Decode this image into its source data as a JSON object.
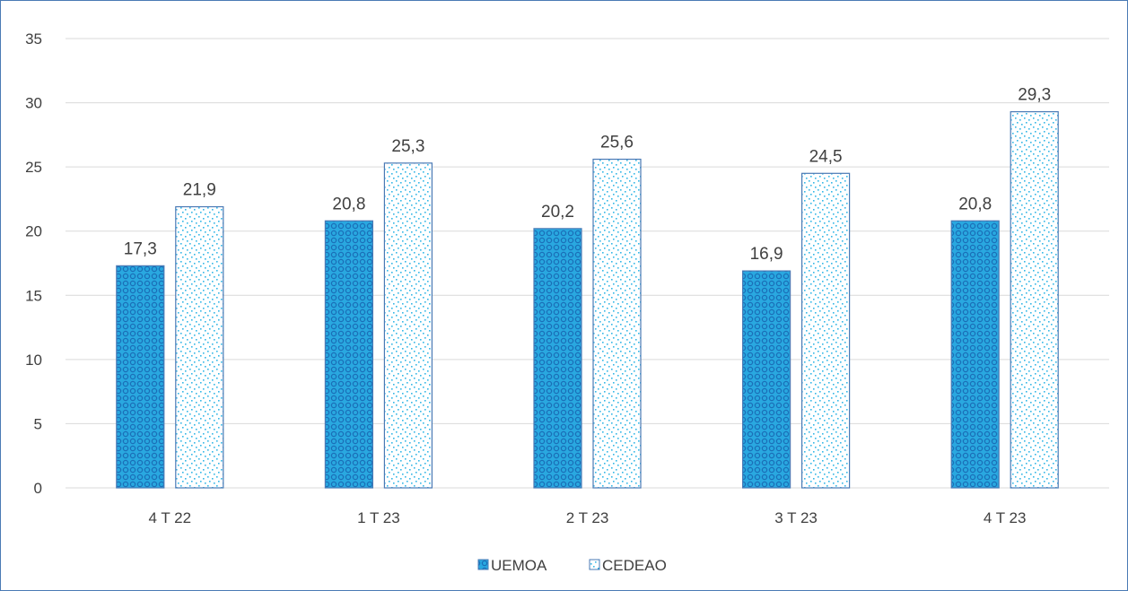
{
  "chart_data": {
    "type": "bar",
    "categories": [
      "4 T 22",
      "1 T 23",
      "2 T 23",
      "3 T 23",
      "4 T 23"
    ],
    "series": [
      {
        "name": "UEMOA",
        "values": [
          17.3,
          20.8,
          20.2,
          16.9,
          20.8
        ],
        "data_labels": [
          "17,3",
          "20,8",
          "20,2",
          "16,9",
          "20,8"
        ]
      },
      {
        "name": "CEDEAO",
        "values": [
          21.9,
          25.3,
          25.6,
          24.5,
          29.3
        ],
        "data_labels": [
          "21,9",
          "25,3",
          "25,6",
          "24,5",
          "29,3"
        ]
      }
    ],
    "ylim": [
      0,
      35
    ],
    "yticks": [
      0,
      5,
      10,
      15,
      20,
      25,
      30,
      35
    ],
    "grid": true,
    "legend_position": "bottom",
    "colors": {
      "uemoa_fill": "#29a8e0",
      "uemoa_pattern": "#1a6fb8",
      "cedeao_fill": "#ffffff",
      "cedeao_pattern": "#36b7e6",
      "bar_border": "#4a7ab5",
      "grid": "#d9d9d9",
      "text": "#404040"
    }
  }
}
